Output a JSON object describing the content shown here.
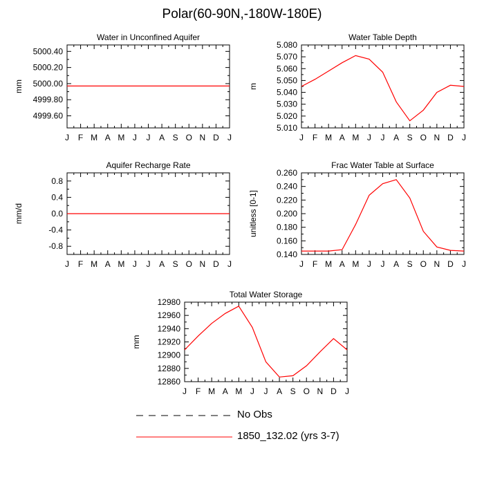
{
  "title": "Polar(60-90N,-180W-180E)",
  "legend": [
    {
      "label": "No Obs",
      "color": "#000000",
      "dash": true
    },
    {
      "label": "1850_132.02 (yrs 3-7)",
      "color": "#ff0000",
      "dash": false
    }
  ],
  "chart_data": [
    {
      "type": "line",
      "title": "Water in Unconfined Aquifer",
      "ylabel": "mm",
      "xlabel": "",
      "categories": [
        "J",
        "F",
        "M",
        "A",
        "M",
        "J",
        "J",
        "A",
        "S",
        "O",
        "N",
        "D",
        "J"
      ],
      "ylim": [
        4999.45,
        5000.48
      ],
      "yticks": [
        4999.6,
        4999.8,
        5000.0,
        5000.2,
        5000.4
      ],
      "ytick_labels": [
        "4999.60",
        "4999.80",
        "5000.00",
        "5000.20",
        "5000.40"
      ],
      "series": [
        {
          "color": "#ff0000",
          "values": [
            4999.97,
            4999.97,
            4999.97,
            4999.97,
            4999.97,
            4999.97,
            4999.97,
            4999.97,
            4999.97,
            4999.97,
            4999.97,
            4999.97,
            4999.97
          ]
        }
      ]
    },
    {
      "type": "line",
      "title": "Water Table Depth",
      "ylabel": "m",
      "xlabel": "",
      "categories": [
        "J",
        "F",
        "M",
        "A",
        "M",
        "J",
        "J",
        "A",
        "S",
        "O",
        "N",
        "D",
        "J"
      ],
      "ylim": [
        5.01,
        5.08
      ],
      "yticks": [
        5.01,
        5.02,
        5.03,
        5.04,
        5.05,
        5.06,
        5.07,
        5.08
      ],
      "ytick_labels": [
        "5.010",
        "5.020",
        "5.030",
        "5.040",
        "5.050",
        "5.060",
        "5.070",
        "5.080"
      ],
      "series": [
        {
          "color": "#ff0000",
          "values": [
            5.045,
            5.051,
            5.058,
            5.065,
            5.071,
            5.068,
            5.057,
            5.032,
            5.016,
            5.025,
            5.04,
            5.046,
            5.045
          ]
        }
      ]
    },
    {
      "type": "line",
      "title": "Aquifer Recharge Rate",
      "ylabel": "mm/d",
      "xlabel": "",
      "categories": [
        "J",
        "F",
        "M",
        "A",
        "M",
        "J",
        "J",
        "A",
        "S",
        "O",
        "N",
        "D",
        "J"
      ],
      "ylim": [
        -1.0,
        1.0
      ],
      "yticks": [
        -0.8,
        -0.4,
        0.0,
        0.4,
        0.8
      ],
      "ytick_labels": [
        "-0.8",
        "-0.4",
        "0.0",
        "0.4",
        "0.8"
      ],
      "series": [
        {
          "color": "#ff0000",
          "values": [
            0,
            0,
            0,
            0,
            0,
            0,
            0,
            0,
            0,
            0,
            0,
            0,
            0
          ]
        }
      ]
    },
    {
      "type": "line",
      "title": "Frac Water Table at Surface",
      "ylabel": "unitless [0-1]",
      "xlabel": "",
      "categories": [
        "J",
        "F",
        "M",
        "A",
        "M",
        "J",
        "J",
        "A",
        "S",
        "O",
        "N",
        "D",
        "J"
      ],
      "ylim": [
        0.14,
        0.26
      ],
      "yticks": [
        0.14,
        0.16,
        0.18,
        0.2,
        0.22,
        0.24,
        0.26
      ],
      "ytick_labels": [
        "0.140",
        "0.160",
        "0.180",
        "0.200",
        "0.220",
        "0.240",
        "0.260"
      ],
      "series": [
        {
          "color": "#ff0000",
          "values": [
            0.145,
            0.145,
            0.145,
            0.147,
            0.184,
            0.227,
            0.244,
            0.25,
            0.223,
            0.174,
            0.151,
            0.146,
            0.145
          ]
        }
      ]
    },
    {
      "type": "line",
      "title": "Total Water Storage",
      "ylabel": "mm",
      "xlabel": "",
      "categories": [
        "J",
        "F",
        "M",
        "A",
        "M",
        "J",
        "J",
        "A",
        "S",
        "O",
        "N",
        "D",
        "J"
      ],
      "ylim": [
        12860,
        12980
      ],
      "yticks": [
        12860,
        12880,
        12900,
        12920,
        12940,
        12960,
        12980
      ],
      "ytick_labels": [
        "12860",
        "12880",
        "12900",
        "12920",
        "12940",
        "12960",
        "12980"
      ],
      "series": [
        {
          "color": "#ff0000",
          "values": [
            12908,
            12929,
            12948,
            12963,
            12974,
            12942,
            12890,
            12867,
            12869,
            12884,
            12905,
            12925,
            12908
          ]
        }
      ]
    }
  ]
}
